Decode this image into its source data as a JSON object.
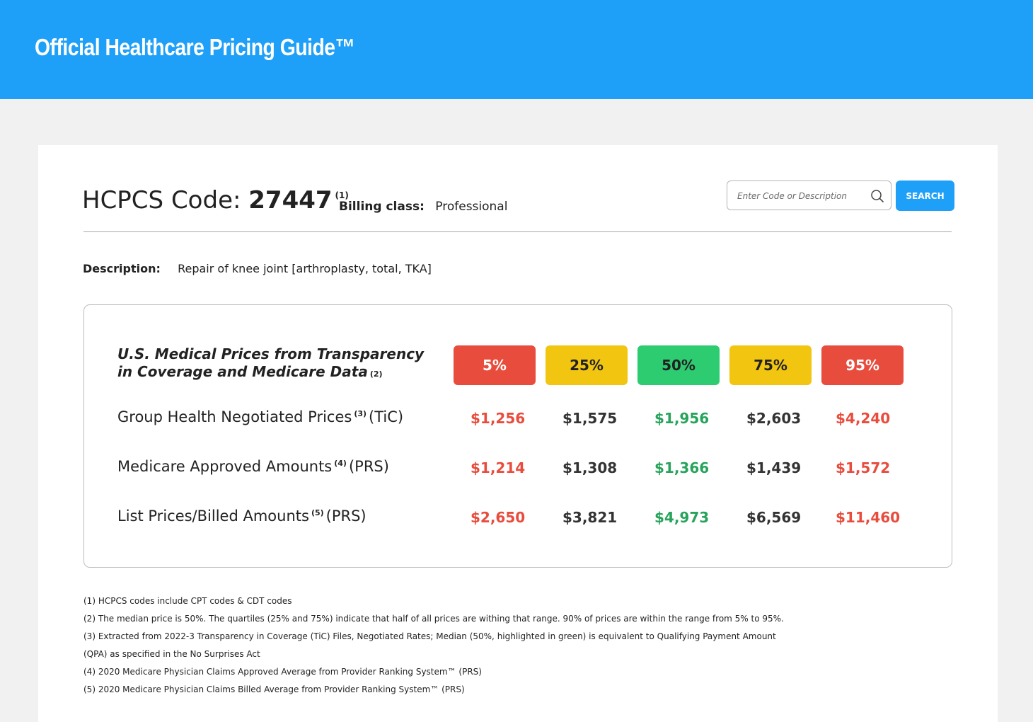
{
  "header": {
    "title": "Official Healthcare Pricing Guide™"
  },
  "code": {
    "label": "HCPCS Code:",
    "value": "27447",
    "footnote": "(1)"
  },
  "billing": {
    "label": "Billing class:",
    "value": "Professional"
  },
  "search": {
    "placeholder": "Enter Code or Description",
    "button_label": "SEARCH",
    "icon": "search-icon"
  },
  "description": {
    "label": "Description:",
    "value": "Repair of knee joint [arthroplasty, total, TKA]"
  },
  "prices": {
    "title": "U.S. Medical Prices from Transparency in Coverage and Medicare Data",
    "title_footnote": "(2)",
    "percentiles": [
      {
        "label": "5%",
        "color": "#e84c3d",
        "text_color": "#ffffff"
      },
      {
        "label": "25%",
        "color": "#f2c511",
        "text_color": "#222222"
      },
      {
        "label": "50%",
        "color": "#2ecc71",
        "text_color": "#222222"
      },
      {
        "label": "75%",
        "color": "#f2c511",
        "text_color": "#222222"
      },
      {
        "label": "95%",
        "color": "#e84c3d",
        "text_color": "#ffffff"
      }
    ],
    "value_colors": [
      "#e84c3d",
      "#333333",
      "#27a35a",
      "#333333",
      "#e84c3d"
    ],
    "rows": [
      {
        "label": "Group Health Negotiated Prices",
        "footnote": "(3)",
        "suffix": "(TiC)",
        "values": [
          "$1,256",
          "$1,575",
          "$1,956",
          "$2,603",
          "$4,240"
        ]
      },
      {
        "label": "Medicare Approved Amounts",
        "footnote": "(4)",
        "suffix": "(PRS)",
        "values": [
          "$1,214",
          "$1,308",
          "$1,366",
          "$1,439",
          "$1,572"
        ]
      },
      {
        "label": "List Prices/Billed Amounts",
        "footnote": "(5)",
        "suffix": "(PRS)",
        "values": [
          "$2,650",
          "$3,821",
          "$4,973",
          "$6,569",
          "$11,460"
        ]
      }
    ]
  },
  "footnotes": [
    "(1) HCPCS codes include CPT codes & CDT codes",
    "(2) The median price is 50%. The quartiles (25% and 75%) indicate that half of all prices are withing that range. 90% of prices are within the range from 5% to 95%.",
    "(3) Extracted from 2022-3 Transparency in Coverage (TiC) Files, Negotiated Rates; Median (50%, highlighted in green) is equivalent to Qualifying Payment Amount (QPA) as specified in the No Surprises Act",
    "(4) 2020 Medicare Physician Claims Approved Average from Provider Ranking System™ (PRS)",
    "(5) 2020 Medicare Physician Claims Billed Average from Provider Ranking System™ (PRS)"
  ]
}
